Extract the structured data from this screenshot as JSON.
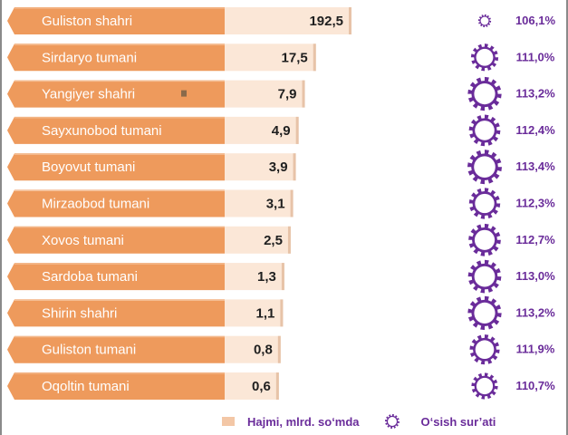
{
  "chart_data": {
    "type": "bar",
    "categories": [
      "Guliston shahri",
      "Sirdaryo tumani",
      "Yangiyer shahri",
      "Sayxunobod tumani",
      "Boyovut tumani",
      "Mirzaobod tumani",
      "Xovos tumani",
      "Sardoba tumani",
      "Shirin shahri",
      "Guliston tumani",
      "Oqoltin tumani"
    ],
    "values": [
      192.5,
      17.5,
      7.9,
      4.9,
      3.9,
      3.1,
      2.5,
      1.3,
      1.1,
      0.8,
      0.6
    ],
    "value_labels": [
      "192,5",
      "17,5",
      "7,9",
      "4,9",
      "3,9",
      "3,1",
      "2,5",
      "1,3",
      "1,1",
      "0,8",
      "0,6"
    ],
    "growth_labels": [
      "106,1%",
      "111,0%",
      "113,2%",
      "112,4%",
      "113,4%",
      "112,3%",
      "112,7%",
      "113,0%",
      "113,2%",
      "111,9%",
      "110,7%"
    ],
    "growth": [
      106.1,
      111.0,
      113.2,
      112.4,
      113.4,
      112.3,
      112.7,
      113.0,
      113.2,
      111.9,
      110.7
    ],
    "legend": {
      "volume": "Hajmi, mlrd. so‘mda",
      "growth": "O‘sish sur’ati"
    },
    "colors": {
      "bar": "#ee9a5c",
      "bar_dark": "#e0823f",
      "label_bg": "#fbe7d7",
      "gear": "#6a2c9a",
      "text_dark": "#1f1f1f"
    }
  }
}
